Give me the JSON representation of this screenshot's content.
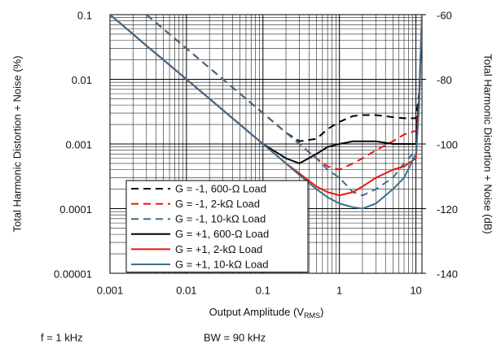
{
  "chart_data": {
    "type": "line",
    "xlabel": {
      "text": "Output Amplitude (V",
      "subscript": "RMS",
      "end": ")"
    },
    "ylabel": "Total Harmonic Distortion + Noise (%)",
    "y2label": "Total Harmonic Distortion + Noise (dB)",
    "notes": [
      "f = 1 kHz",
      "BW = 90 kHz"
    ],
    "xscale": "log",
    "yscale": "log",
    "grid": true,
    "legend": "lower left",
    "xlim": [
      0.001,
      12
    ],
    "xticks": [
      0.001,
      0.01,
      0.1,
      1,
      10
    ],
    "ylim": [
      1e-05,
      0.1
    ],
    "yticks": [
      1e-05,
      0.0001,
      0.001,
      0.01,
      0.1
    ],
    "y2lim": [
      -140,
      -60
    ],
    "y2ticks": [
      -140,
      -120,
      -100,
      -80,
      -60
    ],
    "x": [
      0.001,
      0.002,
      0.003,
      0.005,
      0.01,
      0.02,
      0.05,
      0.1,
      0.2,
      0.3,
      0.5,
      0.7,
      1,
      1.5,
      2,
      3,
      5,
      7,
      10,
      11,
      12
    ],
    "series": [
      {
        "name": "G = -1, 600-Ω Load",
        "color": "#000000",
        "dashed": true,
        "values": [
          null,
          null,
          0.1,
          0.06,
          0.03,
          0.015,
          0.006,
          0.003,
          0.0015,
          0.0011,
          0.0012,
          0.0017,
          0.0022,
          0.0027,
          0.0028,
          0.0028,
          0.0026,
          0.0025,
          0.0025,
          0.006,
          null
        ]
      },
      {
        "name": "G = -1, 2-kΩ Load",
        "color": "#e8140c",
        "dashed": true,
        "values": [
          null,
          null,
          0.1,
          0.06,
          0.03,
          0.015,
          0.006,
          0.003,
          0.0015,
          0.001,
          0.0006,
          0.00045,
          0.0004,
          0.0005,
          0.0006,
          0.0008,
          0.0011,
          0.0014,
          0.0016,
          0.005,
          null
        ]
      },
      {
        "name": "G = -1, 10-kΩ Load",
        "color": "#3d6e8c",
        "dashed": true,
        "values": [
          null,
          null,
          0.1,
          0.06,
          0.03,
          0.015,
          0.006,
          0.003,
          0.0015,
          0.001,
          0.0006,
          0.0004,
          0.0003,
          0.00018,
          0.00016,
          0.0002,
          0.0003,
          0.0005,
          0.0008,
          0.004,
          null
        ]
      },
      {
        "name": "G = +1, 600-Ω Load",
        "color": "#000000",
        "dashed": false,
        "values": [
          0.1,
          0.05,
          0.033,
          0.02,
          0.01,
          0.005,
          0.002,
          0.001,
          0.0006,
          0.0005,
          0.0007,
          0.0009,
          0.001,
          0.0011,
          0.0011,
          0.0011,
          0.001,
          0.001,
          0.001,
          0.005,
          0.1
        ]
      },
      {
        "name": "G = +1, 2-kΩ Load",
        "color": "#e8140c",
        "dashed": false,
        "values": [
          0.1,
          0.05,
          0.033,
          0.02,
          0.01,
          0.005,
          0.002,
          0.001,
          0.0005,
          0.00035,
          0.00022,
          0.00018,
          0.00016,
          0.00018,
          0.00022,
          0.0003,
          0.0004,
          0.00045,
          0.0006,
          0.004,
          0.1
        ]
      },
      {
        "name": "G = +1, 10-kΩ Load",
        "color": "#3d6e8c",
        "dashed": false,
        "values": [
          0.1,
          0.05,
          0.033,
          0.02,
          0.01,
          0.005,
          0.002,
          0.001,
          0.0005,
          0.00033,
          0.0002,
          0.00015,
          0.00012,
          0.000105,
          0.0001,
          0.00012,
          0.0002,
          0.0003,
          0.0007,
          0.004,
          0.1
        ]
      }
    ]
  }
}
